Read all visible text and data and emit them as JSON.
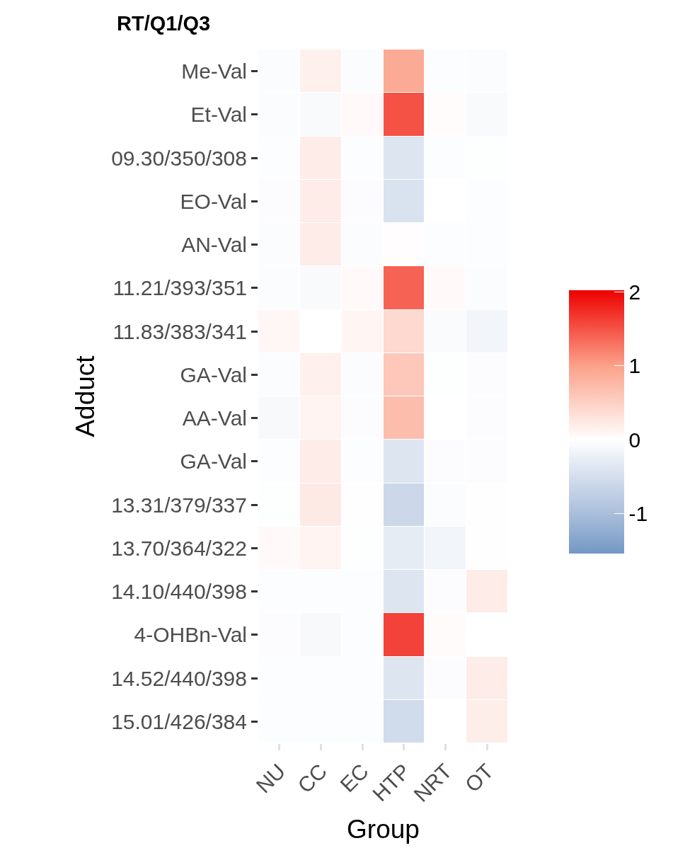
{
  "chart_data": {
    "type": "heatmap",
    "title": "RT/Q1/Q3",
    "xlabel": "Group",
    "ylabel": "Adduct",
    "categories": [
      "NU",
      "CC",
      "EC",
      "HTP",
      "NRT",
      "OT"
    ],
    "y_categories": [
      "Me-Val",
      "Et-Val",
      "09.30/350/308",
      "EO-Val",
      "AN-Val",
      "11.21/393/351",
      "11.83/383/341",
      "GA-Val",
      "AA-Val",
      "GA-Val",
      "13.31/379/337",
      "13.70/364/322",
      "14.10/440/398",
      "4-OHBn-Val",
      "14.52/440/398",
      "15.01/426/384"
    ],
    "cells": [
      [
        -0.05,
        0.15,
        -0.05,
        0.9,
        -0.03,
        -0.05
      ],
      [
        -0.05,
        -0.08,
        0.05,
        1.5,
        0.03,
        -0.08
      ],
      [
        -0.03,
        0.2,
        -0.03,
        -0.4,
        -0.03,
        -0.02
      ],
      [
        -0.04,
        0.2,
        -0.04,
        -0.45,
        0,
        -0.03
      ],
      [
        -0.05,
        0.2,
        -0.05,
        0.02,
        -0.03,
        -0.03
      ],
      [
        -0.05,
        -0.08,
        0.05,
        1.4,
        0.05,
        -0.05
      ],
      [
        0.08,
        0,
        0.1,
        0.4,
        -0.06,
        -0.15
      ],
      [
        -0.05,
        0.15,
        -0.05,
        0.6,
        -0.02,
        -0.04
      ],
      [
        -0.1,
        0.12,
        -0.04,
        0.7,
        0,
        -0.04
      ],
      [
        -0.03,
        0.2,
        -0.03,
        -0.4,
        -0.04,
        -0.04
      ],
      [
        -0.02,
        0.22,
        -0.01,
        -0.6,
        -0.05,
        -0.01
      ],
      [
        0.05,
        0.12,
        -0.02,
        -0.3,
        -0.15,
        0.01
      ],
      [
        -0.03,
        -0.03,
        -0.03,
        -0.4,
        -0.04,
        0.2
      ],
      [
        -0.04,
        -0.1,
        -0.03,
        1.6,
        0.04,
        0
      ],
      [
        -0.03,
        -0.03,
        -0.03,
        -0.4,
        -0.04,
        0.2
      ],
      [
        -0.03,
        -0.03,
        -0.03,
        -0.55,
        0,
        0.18
      ]
    ],
    "clim": [
      -1.54,
      2.02
    ],
    "cticks": [
      -1,
      0,
      1,
      2
    ]
  }
}
